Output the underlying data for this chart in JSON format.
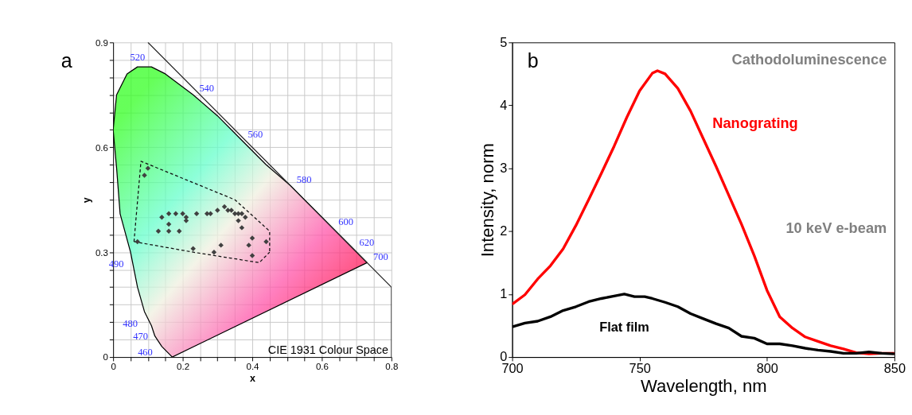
{
  "chart_data": [
    {
      "type": "scatter",
      "xlabel": "x",
      "ylabel": "y",
      "xlim": [
        0,
        0.8
      ],
      "ylim": [
        0,
        0.9
      ],
      "xticks": [
        0,
        {
          "value": 0.05,
          "label": null
        },
        {
          "value": 0.1,
          "label": null
        },
        {
          "value": 0.15,
          "label": null
        },
        0.2,
        {
          "value": 0.25,
          "label": null
        },
        {
          "value": 0.3,
          "label": null
        },
        {
          "value": 0.35,
          "label": null
        },
        0.4,
        {
          "value": 0.45,
          "label": null
        },
        {
          "value": 0.5,
          "label": null
        },
        {
          "value": 0.55,
          "label": null
        },
        0.6,
        {
          "value": 0.65,
          "label": null
        },
        {
          "value": 0.7,
          "label": null
        },
        {
          "value": 0.75,
          "label": null
        },
        0.8
      ],
      "yticks": [
        0,
        {
          "value": 0.05,
          "label": null
        },
        {
          "value": 0.1,
          "label": null
        },
        {
          "value": 0.15,
          "label": null
        },
        {
          "value": 0.2,
          "label": null
        },
        {
          "value": 0.25,
          "label": null
        },
        0.3,
        {
          "value": 0.35,
          "label": null
        },
        {
          "value": 0.4,
          "label": null
        },
        {
          "value": 0.45,
          "label": null
        },
        {
          "value": 0.5,
          "label": null
        },
        {
          "value": 0.55,
          "label": null
        },
        0.6,
        {
          "value": 0.65,
          "label": null
        },
        {
          "value": 0.7,
          "label": null
        },
        {
          "value": 0.75,
          "label": null
        },
        {
          "value": 0.8,
          "label": null
        },
        {
          "value": 0.85,
          "label": null
        },
        0.9
      ],
      "grid": true,
      "series": [
        {
          "type": "area",
          "color": "#000000",
          "x": [
            0.17,
            0.14,
            0.12,
            0.11,
            0.09,
            0.07,
            0.05,
            0.02,
            0.01,
            0.0,
            0.01,
            0.04,
            0.07,
            0.11,
            0.15,
            0.23,
            0.3,
            0.37,
            0.44,
            0.51,
            0.58,
            0.63,
            0.69,
            0.73,
            0.17
          ],
          "values": [
            0.0,
            0.03,
            0.06,
            0.09,
            0.13,
            0.2,
            0.3,
            0.41,
            0.54,
            0.65,
            0.75,
            0.81,
            0.83,
            0.83,
            0.81,
            0.75,
            0.69,
            0.62,
            0.55,
            0.49,
            0.42,
            0.37,
            0.31,
            0.27,
            0.0
          ]
        },
        {
          "type": "line",
          "color": "#202020",
          "x": [
            0.1,
            0.8,
            0.8
          ],
          "values": [
            0.9,
            0.2,
            0.0
          ]
        },
        {
          "type": "line",
          "color": "#101010",
          "line_style": "dashed",
          "x": [
            0.06,
            0.08,
            0.35,
            0.45,
            0.45
          ],
          "values": [
            0.33,
            0.56,
            0.45,
            0.36,
            0.3
          ]
        },
        {
          "type": "line",
          "color": "#101010",
          "line_style": "dashed",
          "x": [
            0.06,
            0.23,
            0.42,
            0.45
          ],
          "values": [
            0.33,
            0.3,
            0.27,
            0.3
          ]
        },
        {
          "type": "scatter",
          "color": "#404040",
          "marker": "diamond",
          "x": [
            0.1,
            0.09,
            0.14,
            0.16,
            0.18,
            0.2,
            0.21,
            0.21,
            0.16,
            0.13,
            0.16,
            0.19,
            0.24,
            0.27,
            0.28,
            0.3,
            0.32,
            0.33,
            0.34,
            0.35,
            0.36,
            0.37,
            0.38,
            0.36,
            0.37,
            0.07,
            0.23,
            0.29,
            0.31,
            0.4,
            0.39,
            0.4,
            0.44
          ],
          "values": [
            0.54,
            0.52,
            0.4,
            0.41,
            0.41,
            0.41,
            0.4,
            0.39,
            0.38,
            0.36,
            0.36,
            0.36,
            0.41,
            0.41,
            0.41,
            0.42,
            0.43,
            0.42,
            0.42,
            0.41,
            0.41,
            0.41,
            0.4,
            0.39,
            0.37,
            0.33,
            0.31,
            0.3,
            0.32,
            0.34,
            0.32,
            0.29,
            0.33
          ]
        }
      ],
      "annotations": [
        "a",
        "CIE 1931 Colour Space",
        {
          "text": "520",
          "x": 0.07,
          "y": 0.83
        },
        {
          "text": "540",
          "x": 0.23,
          "y": 0.75
        },
        {
          "text": "560",
          "x": 0.37,
          "y": 0.62
        },
        {
          "text": "580",
          "x": 0.51,
          "y": 0.49
        },
        {
          "text": "600",
          "x": 0.63,
          "y": 0.37
        },
        {
          "text": "620",
          "x": 0.69,
          "y": 0.31
        },
        {
          "text": "700",
          "x": 0.73,
          "y": 0.27
        },
        {
          "text": "490",
          "x": 0.05,
          "y": 0.3
        },
        {
          "text": "480",
          "x": 0.09,
          "y": 0.13
        },
        {
          "text": "470",
          "x": 0.12,
          "y": 0.06
        },
        {
          "text": "460",
          "x": 0.14,
          "y": 0.03
        }
      ]
    },
    {
      "type": "line",
      "xlabel": "Wavelength, nm",
      "ylabel": "Intensity, norm",
      "xlim": [
        700,
        850
      ],
      "ylim": [
        0,
        5
      ],
      "xticks": [
        700,
        750,
        800,
        850
      ],
      "yticks": [
        0,
        1,
        2,
        3,
        4,
        5
      ],
      "series": [
        {
          "name": "Nanograting",
          "color": "#ff0000",
          "x": [
            700,
            705,
            710,
            715,
            720,
            725,
            730,
            735,
            740,
            745,
            750,
            755,
            757,
            760,
            765,
            770,
            775,
            780,
            785,
            790,
            795,
            800,
            805,
            810,
            815,
            820,
            825,
            830,
            835,
            840,
            845,
            850
          ],
          "values": [
            0.84,
            0.99,
            1.24,
            1.45,
            1.72,
            2.09,
            2.5,
            2.92,
            3.35,
            3.81,
            4.23,
            4.51,
            4.55,
            4.5,
            4.27,
            3.91,
            3.47,
            3.03,
            2.57,
            2.11,
            1.61,
            1.06,
            0.64,
            0.46,
            0.32,
            0.25,
            0.18,
            0.13,
            0.07,
            0.05,
            0.06,
            0.06
          ]
        },
        {
          "name": "Flat film",
          "color": "#000000",
          "x": [
            700,
            705,
            710,
            715,
            720,
            725,
            730,
            735,
            740,
            744,
            748,
            752,
            755,
            760,
            765,
            770,
            775,
            780,
            785,
            790,
            795,
            800,
            805,
            810,
            815,
            820,
            825,
            830,
            835,
            840,
            845,
            850
          ],
          "values": [
            0.48,
            0.54,
            0.57,
            0.64,
            0.74,
            0.8,
            0.88,
            0.93,
            0.97,
            1.0,
            0.96,
            0.96,
            0.93,
            0.87,
            0.8,
            0.69,
            0.61,
            0.53,
            0.46,
            0.33,
            0.3,
            0.21,
            0.21,
            0.18,
            0.14,
            0.11,
            0.09,
            0.06,
            0.06,
            0.08,
            0.06,
            0.05
          ]
        }
      ],
      "annotations": [
        "b",
        "Cathodoluminescence",
        "10 keV e-beam"
      ]
    }
  ]
}
